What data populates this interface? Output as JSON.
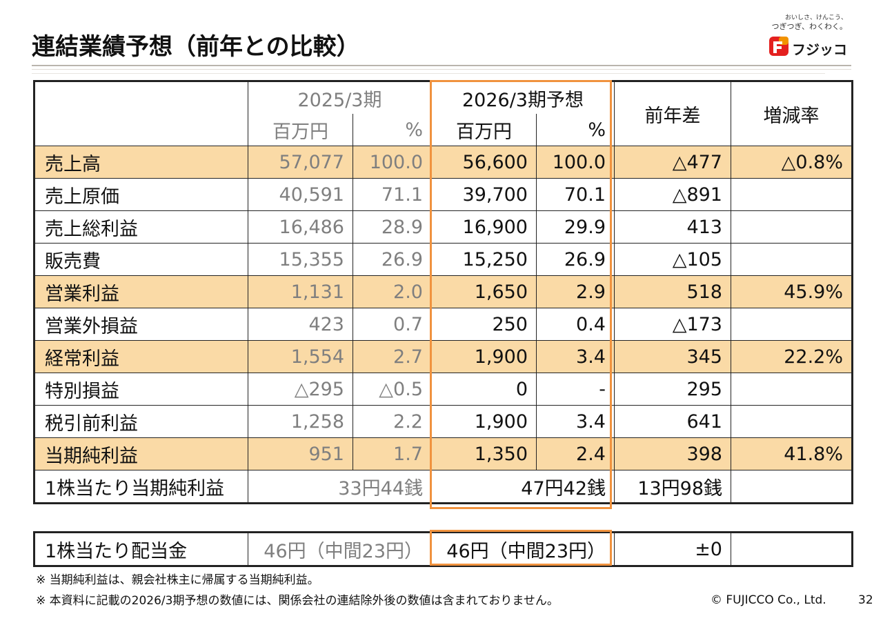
{
  "page": {
    "title": "連結業績予想（前年との比較）",
    "page_number": "32",
    "copyright": "© FUJICCO Co., Ltd."
  },
  "logo": {
    "slogan_line1": "おいしさ、けんこう、",
    "slogan_line2": "つぎつぎ、わくわく。",
    "brand": "フジッコ",
    "colors": {
      "red": "#e4201f",
      "orange": "#f29300"
    }
  },
  "colors": {
    "highlight": "#fadaa6",
    "forecast_border": "#f0923e",
    "muted": "#7f7f7f"
  },
  "table": {
    "header": {
      "prev_period": "2025/3期",
      "forecast_period": "2026/3期予想",
      "diff": "前年差",
      "rate": "増減率",
      "unit_million": "百万円",
      "unit_pct": "%"
    },
    "rows": [
      {
        "label": "売上高",
        "prev_amt": "57,077",
        "prev_pct": "100.0",
        "fc_amt": "56,600",
        "fc_pct": "100.0",
        "diff": "△477",
        "rate": "△0.8%"
      },
      {
        "label": "売上原価",
        "prev_amt": "40,591",
        "prev_pct": "71.1",
        "fc_amt": "39,700",
        "fc_pct": "70.1",
        "diff": "△891",
        "rate": ""
      },
      {
        "label": "売上総利益",
        "prev_amt": "16,486",
        "prev_pct": "28.9",
        "fc_amt": "16,900",
        "fc_pct": "29.9",
        "diff": "413",
        "rate": ""
      },
      {
        "label": "販売費",
        "prev_amt": "15,355",
        "prev_pct": "26.9",
        "fc_amt": "15,250",
        "fc_pct": "26.9",
        "diff": "△105",
        "rate": ""
      },
      {
        "label": "営業利益",
        "prev_amt": "1,131",
        "prev_pct": "2.0",
        "fc_amt": "1,650",
        "fc_pct": "2.9",
        "diff": "518",
        "rate": "45.9%"
      },
      {
        "label": "営業外損益",
        "prev_amt": "423",
        "prev_pct": "0.7",
        "fc_amt": "250",
        "fc_pct": "0.4",
        "diff": "△173",
        "rate": ""
      },
      {
        "label": "経常利益",
        "prev_amt": "1,554",
        "prev_pct": "2.7",
        "fc_amt": "1,900",
        "fc_pct": "3.4",
        "diff": "345",
        "rate": "22.2%"
      },
      {
        "label": "特別損益",
        "prev_amt": "△295",
        "prev_pct": "△0.5",
        "fc_amt": "0",
        "fc_pct": "-",
        "diff": "295",
        "rate": ""
      },
      {
        "label": "税引前利益",
        "prev_amt": "1,258",
        "prev_pct": "2.2",
        "fc_amt": "1,900",
        "fc_pct": "3.4",
        "diff": "641",
        "rate": ""
      },
      {
        "label": "当期純利益",
        "prev_amt": "951",
        "prev_pct": "1.7",
        "fc_amt": "1,350",
        "fc_pct": "2.4",
        "diff": "398",
        "rate": "41.8%"
      }
    ],
    "eps": {
      "label": "1株当たり当期純利益",
      "prev": "33円44銭",
      "forecast": "47円42銭",
      "diff": "13円98銭",
      "rate": ""
    }
  },
  "dividend": {
    "label": "1株当たり配当金",
    "prev": "46円（中間23円）",
    "forecast": "46円（中間23円）",
    "diff": "±0",
    "rate": ""
  },
  "notes": [
    "※ 当期純利益は、親会社株主に帰属する当期純利益。",
    "※ 本資料に記載の2026/3期予想の数値には、関係会社の連結除外後の数値は含まれておりません。"
  ]
}
